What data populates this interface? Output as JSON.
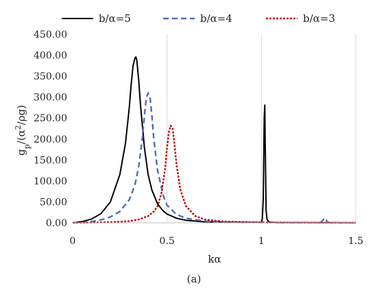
{
  "chart_data": {
    "type": "line",
    "title": "",
    "xlabel": "kα",
    "ylabel": "gp/(α²/ρg)",
    "ylabel_parts": {
      "base": "g",
      "sub": "p",
      "rest": "/(α",
      "sup": "2",
      "tail": "/ρg)"
    },
    "xlim": [
      0,
      1.5
    ],
    "ylim": [
      0,
      450
    ],
    "x_ticks": [
      0,
      0.5,
      1,
      1.5
    ],
    "x_tick_labels": [
      "0",
      "0.5",
      "1",
      "1.5"
    ],
    "y_ticks": [
      0,
      50,
      100,
      150,
      200,
      250,
      300,
      350,
      400,
      450
    ],
    "y_tick_labels": [
      "0.00",
      "50.00",
      "100.00",
      "150.00",
      "200.00",
      "250.00",
      "300.00",
      "350.00",
      "400.00",
      "450.00"
    ],
    "grid": "vertical",
    "legend_position": "top",
    "caption": "(a)",
    "series": [
      {
        "name": "b/α=5",
        "color": "#000000",
        "style": "solid",
        "x": [
          0,
          0.05,
          0.1,
          0.15,
          0.2,
          0.25,
          0.28,
          0.3,
          0.31,
          0.32,
          0.33,
          0.335,
          0.34,
          0.35,
          0.36,
          0.38,
          0.4,
          0.42,
          0.45,
          0.48,
          0.5,
          0.55,
          0.6,
          0.7,
          0.8,
          0.9,
          1.0,
          1.005,
          1.01,
          1.015,
          1.018,
          1.02,
          1.025,
          1.03,
          1.04,
          1.06,
          1.1,
          1.2,
          1.35,
          1.5
        ],
        "y": [
          0,
          3,
          9,
          22,
          50,
          115,
          190,
          275,
          330,
          375,
          393,
          396,
          388,
          340,
          278,
          180,
          115,
          78,
          45,
          28,
          21,
          11,
          6,
          2.5,
          1.2,
          0.6,
          1,
          10,
          60,
          250,
          281,
          200,
          30,
          8,
          2,
          0.8,
          0.3,
          0.2,
          0.1,
          0.05
        ]
      },
      {
        "name": "b/α=4",
        "color": "#4a6fb5",
        "style": "dashed",
        "x": [
          0,
          0.05,
          0.1,
          0.15,
          0.2,
          0.25,
          0.3,
          0.33,
          0.35,
          0.37,
          0.38,
          0.39,
          0.4,
          0.41,
          0.42,
          0.43,
          0.45,
          0.48,
          0.5,
          0.55,
          0.6,
          0.7,
          0.8,
          1.0,
          1.2,
          1.3,
          1.32,
          1.335,
          1.34,
          1.35,
          1.4,
          1.5
        ],
        "y": [
          0,
          1,
          3,
          7,
          14,
          27,
          55,
          90,
          135,
          205,
          255,
          298,
          310,
          300,
          255,
          200,
          125,
          65,
          42,
          20,
          11,
          4,
          2,
          0.7,
          0.4,
          0.5,
          3,
          12,
          10,
          1,
          0.3,
          0.1
        ]
      },
      {
        "name": "b/α=3",
        "color": "#c00000",
        "style": "dotted",
        "x": [
          0,
          0.1,
          0.2,
          0.3,
          0.35,
          0.4,
          0.43,
          0.45,
          0.47,
          0.49,
          0.5,
          0.51,
          0.52,
          0.53,
          0.54,
          0.55,
          0.57,
          0.6,
          0.65,
          0.7,
          0.8,
          1.0,
          1.2,
          1.5
        ],
        "y": [
          0,
          0.5,
          1.5,
          4,
          8,
          16,
          27,
          40,
          70,
          130,
          180,
          218,
          232,
          225,
          185,
          140,
          80,
          40,
          16,
          8,
          3,
          1,
          0.4,
          0.1
        ]
      }
    ]
  }
}
